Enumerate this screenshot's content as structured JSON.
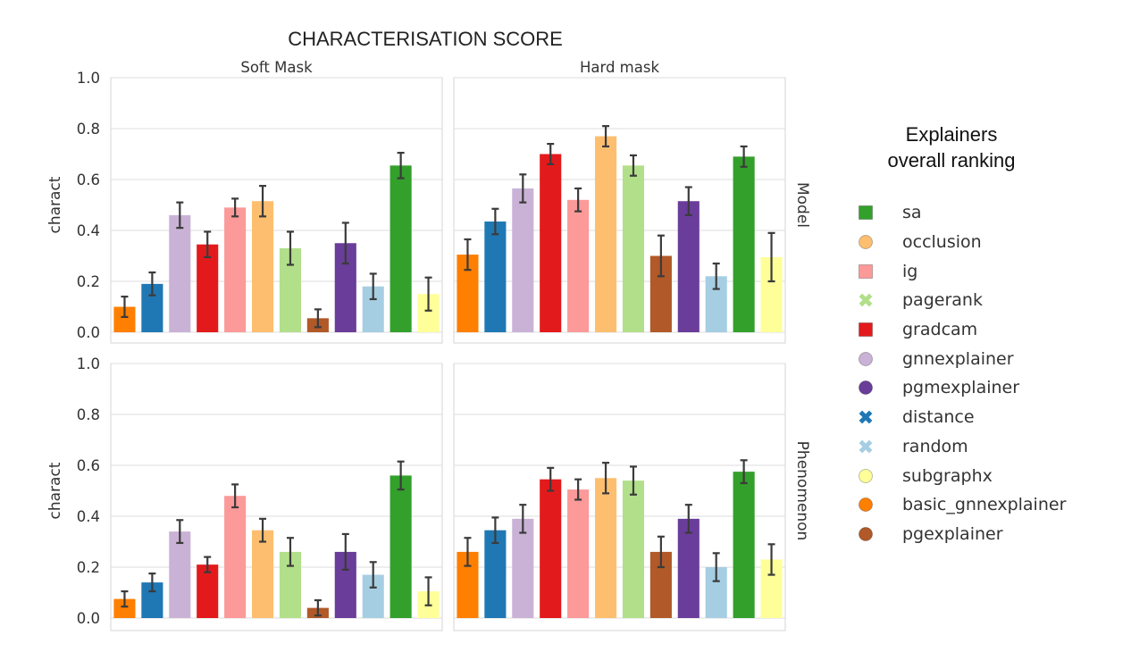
{
  "chart_data": {
    "type": "bar",
    "title": "CHARACTERISATION SCORE",
    "ylabel": "charact",
    "ylim": [
      0,
      1
    ],
    "yticks": [
      "0.0",
      "0.2",
      "0.4",
      "0.6",
      "0.8",
      "1.0"
    ],
    "grid": true,
    "columns": [
      "Soft Mask",
      "Hard mask"
    ],
    "rows": [
      "Model",
      "Phenomenon"
    ],
    "bar_order": [
      "basic_gnnexplainer",
      "distance",
      "gnnexplainer",
      "gradcam",
      "ig",
      "occlusion",
      "pagerank",
      "pgexplainer",
      "pgmexplainer",
      "random",
      "sa",
      "subgraphx"
    ],
    "panels": [
      {
        "row": "Model",
        "column": "Soft Mask",
        "values": [
          0.1,
          0.19,
          0.46,
          0.345,
          0.49,
          0.515,
          0.33,
          0.055,
          0.35,
          0.18,
          0.655,
          0.15
        ],
        "errors": [
          0.04,
          0.045,
          0.05,
          0.05,
          0.035,
          0.06,
          0.065,
          0.035,
          0.08,
          0.05,
          0.05,
          0.065
        ]
      },
      {
        "row": "Model",
        "column": "Hard mask",
        "values": [
          0.305,
          0.435,
          0.565,
          0.7,
          0.52,
          0.77,
          0.655,
          0.3,
          0.515,
          0.22,
          0.69,
          0.295
        ],
        "errors": [
          0.06,
          0.05,
          0.055,
          0.04,
          0.045,
          0.04,
          0.04,
          0.08,
          0.055,
          0.05,
          0.04,
          0.095
        ]
      },
      {
        "row": "Phenomenon",
        "column": "Soft Mask",
        "values": [
          0.075,
          0.14,
          0.34,
          0.21,
          0.48,
          0.345,
          0.26,
          0.04,
          0.26,
          0.17,
          0.56,
          0.105
        ],
        "errors": [
          0.03,
          0.035,
          0.045,
          0.03,
          0.045,
          0.045,
          0.055,
          0.03,
          0.07,
          0.05,
          0.055,
          0.055
        ]
      },
      {
        "row": "Phenomenon",
        "column": "Hard mask",
        "values": [
          0.26,
          0.345,
          0.39,
          0.545,
          0.505,
          0.55,
          0.54,
          0.26,
          0.39,
          0.2,
          0.575,
          0.23
        ],
        "errors": [
          0.055,
          0.05,
          0.055,
          0.045,
          0.04,
          0.06,
          0.055,
          0.06,
          0.055,
          0.055,
          0.045,
          0.06
        ]
      }
    ],
    "legend": {
      "title_line1": "Explainers",
      "title_line2": "overall ranking",
      "placement": "right",
      "entries": [
        {
          "name": "sa",
          "color": "#33a02c",
          "marker": "square"
        },
        {
          "name": "occlusion",
          "color": "#fdbf6f",
          "marker": "circle"
        },
        {
          "name": "ig",
          "color": "#fb9a99",
          "marker": "square"
        },
        {
          "name": "pagerank",
          "color": "#b2df8a",
          "marker": "x"
        },
        {
          "name": "gradcam",
          "color": "#e31a1c",
          "marker": "square"
        },
        {
          "name": "gnnexplainer",
          "color": "#cab2d6",
          "marker": "circle"
        },
        {
          "name": "pgmexplainer",
          "color": "#6a3d9a",
          "marker": "circle"
        },
        {
          "name": "distance",
          "color": "#1f78b4",
          "marker": "x"
        },
        {
          "name": "random",
          "color": "#a6cee3",
          "marker": "x"
        },
        {
          "name": "subgraphx",
          "color": "#ffff99",
          "marker": "circle"
        },
        {
          "name": "basic_gnnexplainer",
          "color": "#ff7f00",
          "marker": "circle"
        },
        {
          "name": "pgexplainer",
          "color": "#b15928",
          "marker": "circle"
        }
      ]
    }
  }
}
